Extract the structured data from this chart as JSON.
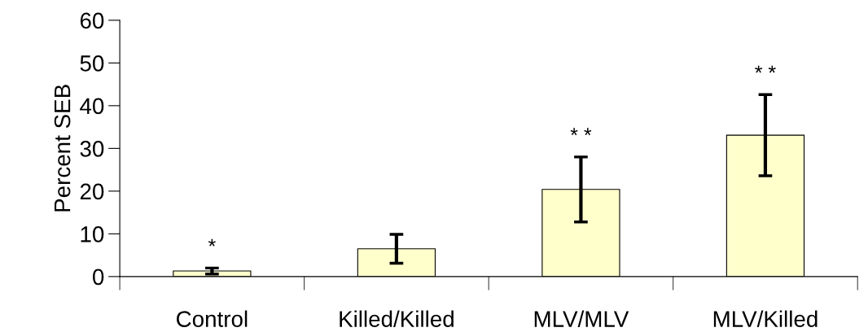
{
  "chart_data": {
    "type": "bar",
    "ylabel": "Percent SEB",
    "categories": [
      "Control",
      "Killed/Killed",
      "MLV/MLV",
      "MLV/Killed"
    ],
    "values": [
      1.3,
      6.5,
      20.4,
      33.1
    ],
    "errors": [
      0.7,
      3.4,
      7.6,
      9.5
    ],
    "color": "#ffffcc",
    "ylim": [
      0,
      60
    ],
    "yticks": [
      0,
      10,
      20,
      30,
      40,
      50,
      60
    ],
    "grid": false,
    "annotations": [
      "*",
      "* *",
      "* *"
    ]
  }
}
